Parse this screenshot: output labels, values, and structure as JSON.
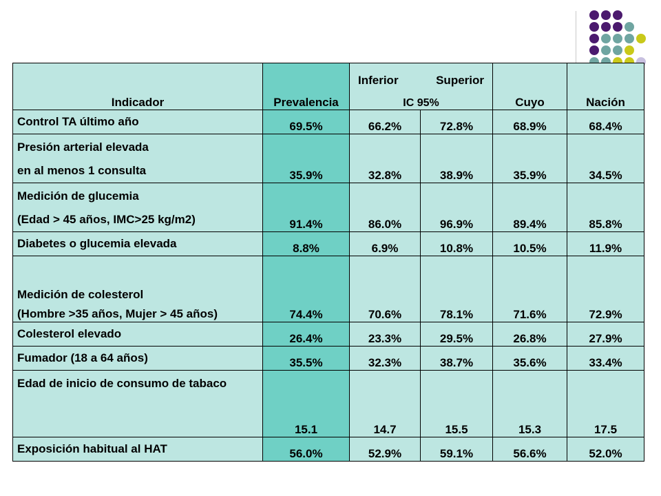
{
  "header": {
    "indicador": "Indicador",
    "prevalencia": "Prevalencia",
    "inferior": "Inferior",
    "superior": "Superior",
    "ic": "IC 95%",
    "cuyo": "Cuyo",
    "nacion": "Nación"
  },
  "rows": [
    {
      "label": "Control TA último año",
      "prevalencia": "69.5%",
      "inferior": "66.2%",
      "superior": "72.8%",
      "cuyo": "68.9%",
      "nacion": "68.4%"
    },
    {
      "label": "Presión arterial elevada",
      "label2": "en al menos 1 consulta",
      "prevalencia": "35.9%",
      "inferior": "32.8%",
      "superior": "38.9%",
      "cuyo": "35.9%",
      "nacion": "34.5%"
    },
    {
      "label": "Medición de glucemia",
      "label2": "(Edad > 45 años, IMC>25 kg/m2)",
      "prevalencia": "91.4%",
      "inferior": "86.0%",
      "superior": "96.9%",
      "cuyo": "89.4%",
      "nacion": "85.8%"
    },
    {
      "label": "Diabetes o glucemia elevada",
      "prevalencia": "8.8%",
      "inferior": "6.9%",
      "superior": "10.8%",
      "cuyo": "10.5%",
      "nacion": "11.9%"
    },
    {
      "label": "Medición de colesterol",
      "label2": "(Hombre >35 años, Mujer > 45 años)",
      "prevalencia": "74.4%",
      "inferior": "70.6%",
      "superior": "78.1%",
      "cuyo": "71.6%",
      "nacion": "72.9%"
    },
    {
      "label": "Colesterol elevado",
      "prevalencia": "26.4%",
      "inferior": "23.3%",
      "superior": "29.5%",
      "cuyo": "26.8%",
      "nacion": "27.9%"
    },
    {
      "label": "Fumador (18 a 64 años)",
      "prevalencia": "35.5%",
      "inferior": "32.3%",
      "superior": "38.7%",
      "cuyo": "35.6%",
      "nacion": "33.4%"
    },
    {
      "label": "Edad de inicio de consumo de tabaco",
      "prevalencia": "15.1",
      "inferior": "14.7",
      "superior": "15.5",
      "cuyo": "15.3",
      "nacion": "17.5"
    },
    {
      "label": "Exposición habitual al HAT",
      "prevalencia": "56.0%",
      "inferior": "52.9%",
      "superior": "59.1%",
      "cuyo": "56.6%",
      "nacion": "52.0%"
    }
  ],
  "colors": {
    "purple": "#4b1a6e",
    "teal": "#6fa5a1",
    "lime": "#c9c91a",
    "lavender": "#c8c0e0"
  }
}
